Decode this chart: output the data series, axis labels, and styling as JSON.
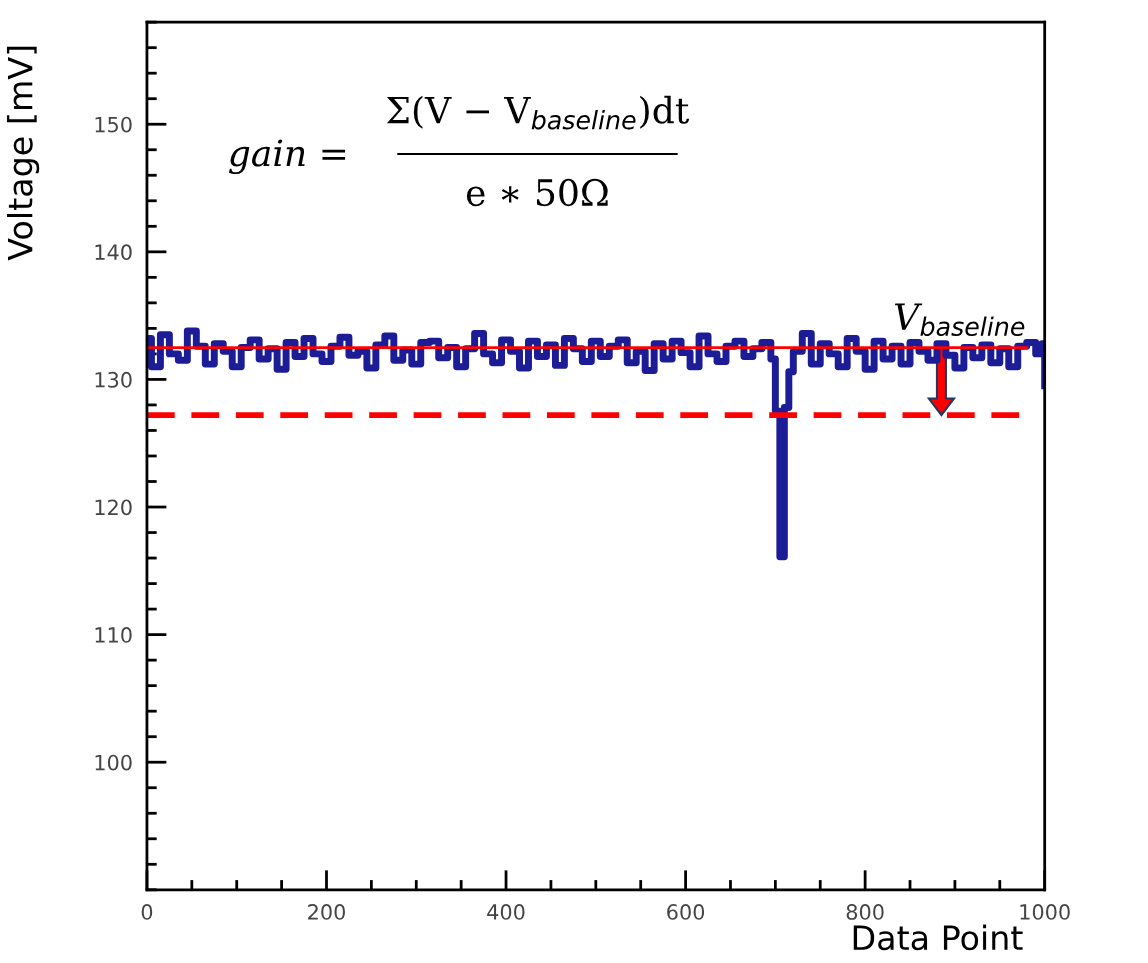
{
  "chart_data": {
    "type": "step",
    "xlabel": "Data Point",
    "ylabel": "Voltage [mV]",
    "xlim": [
      0,
      1000
    ],
    "ylim": [
      90,
      158
    ],
    "xticks": [
      0,
      200,
      400,
      600,
      800,
      1000
    ],
    "yticks": [
      100,
      110,
      120,
      130,
      140,
      150
    ],
    "series": [
      {
        "color": "#1c1c96",
        "x": [
          0,
          5,
          15,
          25,
          35,
          45,
          55,
          65,
          75,
          85,
          95,
          105,
          115,
          125,
          135,
          145,
          155,
          165,
          175,
          185,
          195,
          205,
          215,
          225,
          235,
          245,
          255,
          265,
          275,
          285,
          295,
          305,
          315,
          325,
          335,
          345,
          355,
          365,
          375,
          385,
          395,
          405,
          415,
          425,
          435,
          445,
          455,
          465,
          475,
          485,
          495,
          505,
          515,
          525,
          535,
          545,
          555,
          565,
          575,
          585,
          595,
          605,
          615,
          625,
          635,
          645,
          655,
          665,
          675,
          685,
          695,
          700,
          705,
          710,
          715,
          720,
          730,
          740,
          750,
          760,
          770,
          780,
          790,
          800,
          810,
          820,
          830,
          840,
          850,
          860,
          870,
          880,
          890,
          900,
          910,
          920,
          930,
          940,
          950,
          960,
          970,
          980,
          990,
          997,
          1000
        ],
        "values": [
          133.2,
          131.0,
          133.5,
          132.0,
          131.5,
          133.8,
          132.6,
          131.2,
          132.8,
          132.2,
          131.0,
          132.5,
          133.1,
          131.6,
          132.4,
          130.8,
          132.9,
          131.8,
          133.2,
          132.0,
          131.4,
          132.6,
          133.3,
          131.9,
          132.2,
          130.9,
          132.7,
          133.4,
          131.5,
          132.3,
          131.2,
          132.9,
          133.0,
          131.7,
          132.5,
          131.0,
          132.4,
          133.6,
          132.0,
          131.3,
          133.1,
          132.2,
          130.9,
          133.0,
          131.8,
          132.7,
          131.1,
          133.2,
          132.4,
          131.4,
          133.0,
          131.8,
          132.6,
          133.1,
          131.3,
          132.2,
          130.7,
          132.8,
          131.6,
          133.0,
          132.1,
          131.0,
          133.4,
          132.0,
          131.4,
          132.6,
          133.0,
          131.8,
          132.4,
          132.9,
          131.6,
          127.5,
          116.1,
          127.8,
          130.6,
          132.2,
          133.6,
          131.2,
          132.8,
          132.0,
          131.0,
          133.2,
          132.2,
          130.8,
          133.0,
          131.6,
          132.6,
          131.2,
          132.9,
          132.2,
          131.5,
          132.8,
          131.9,
          130.9,
          132.5,
          131.7,
          132.7,
          131.3,
          132.4,
          131.0,
          132.6,
          132.9,
          132.0,
          132.8,
          129.5
        ]
      }
    ],
    "ref_lines": [
      {
        "axis": "y",
        "value": 132.5,
        "label": "V$_{baseline}$",
        "color": "#ff0000",
        "line_style": "solid"
      },
      {
        "axis": "y",
        "value": 127.2,
        "color": "#ff0000",
        "line_style": "dashed"
      }
    ],
    "annotations": [
      "gain = ",
      "Σ(V − V$_{baseline}$)dt",
      "e ∗ 50Ω"
    ],
    "grid": false
  }
}
